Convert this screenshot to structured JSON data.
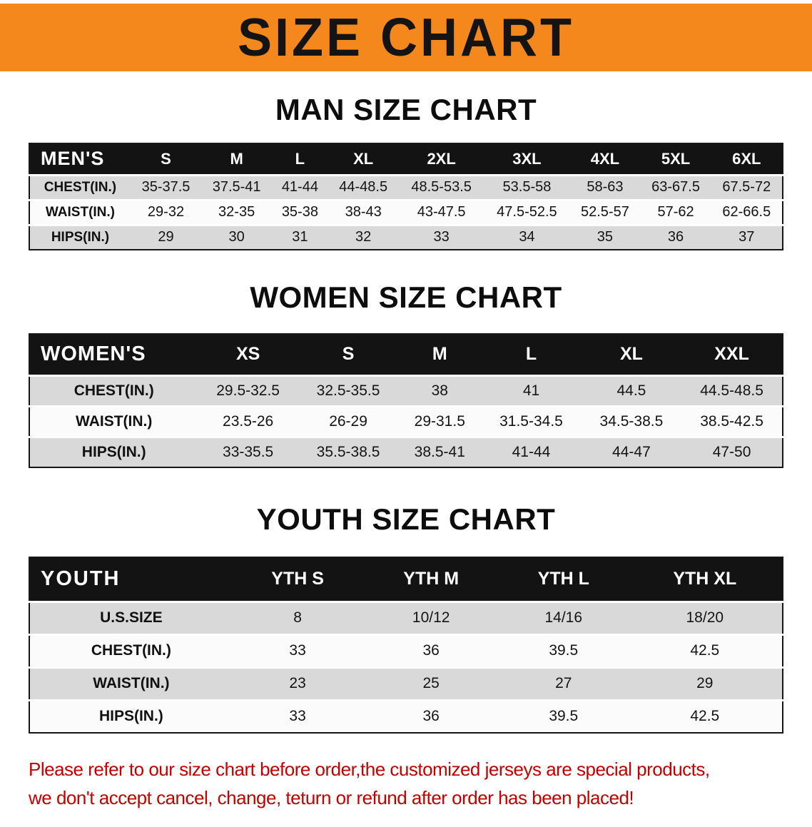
{
  "banner": {
    "title": "SIZE CHART",
    "bg_color": "#f5881d",
    "text_color": "#141414"
  },
  "sections": [
    {
      "heading": "MAN SIZE CHART",
      "table": {
        "name": "mens",
        "header": [
          "MEN'S",
          "S",
          "M",
          "L",
          "XL",
          "2XL",
          "3XL",
          "4XL",
          "5XL",
          "6XL"
        ],
        "rows": [
          [
            "CHEST(IN.)",
            "35-37.5",
            "37.5-41",
            "41-44",
            "44-48.5",
            "48.5-53.5",
            "53.5-58",
            "58-63",
            "63-67.5",
            "67.5-72"
          ],
          [
            "WAIST(IN.)",
            "29-32",
            "32-35",
            "35-38",
            "38-43",
            "43-47.5",
            "47.5-52.5",
            "52.5-57",
            "57-62",
            "62-66.5"
          ],
          [
            "HIPS(IN.)",
            "29",
            "30",
            "31",
            "32",
            "33",
            "34",
            "35",
            "36",
            "37"
          ]
        ]
      }
    },
    {
      "heading": "WOMEN SIZE CHART",
      "table": {
        "name": "womens",
        "header": [
          "WOMEN'S",
          "XS",
          "S",
          "M",
          "L",
          "XL",
          "XXL"
        ],
        "rows": [
          [
            "CHEST(IN.)",
            "29.5-32.5",
            "32.5-35.5",
            "38",
            "41",
            "44.5",
            "44.5-48.5"
          ],
          [
            "WAIST(IN.)",
            "23.5-26",
            "26-29",
            "29-31.5",
            "31.5-34.5",
            "34.5-38.5",
            "38.5-42.5"
          ],
          [
            "HIPS(IN.)",
            "33-35.5",
            "35.5-38.5",
            "38.5-41",
            "41-44",
            "44-47",
            "47-50"
          ]
        ]
      }
    },
    {
      "heading": "YOUTH SIZE CHART",
      "table": {
        "name": "youth",
        "header": [
          "YOUTH",
          "YTH S",
          "YTH M",
          "YTH L",
          "YTH XL"
        ],
        "rows": [
          [
            "U.S.SIZE",
            "8",
            "10/12",
            "14/16",
            "18/20"
          ],
          [
            "CHEST(IN.)",
            "33",
            "36",
            "39.5",
            "42.5"
          ],
          [
            "WAIST(IN.)",
            "23",
            "25",
            "27",
            "29"
          ],
          [
            "HIPS(IN.)",
            "33",
            "36",
            "39.5",
            "42.5"
          ]
        ]
      }
    }
  ],
  "footer": {
    "line1": "Please refer to our size chart before order,the customized jerseys are special products,",
    "line2": "we don't accept cancel, change, teturn or refund after order has been placed!",
    "text_color": "#c40000"
  }
}
